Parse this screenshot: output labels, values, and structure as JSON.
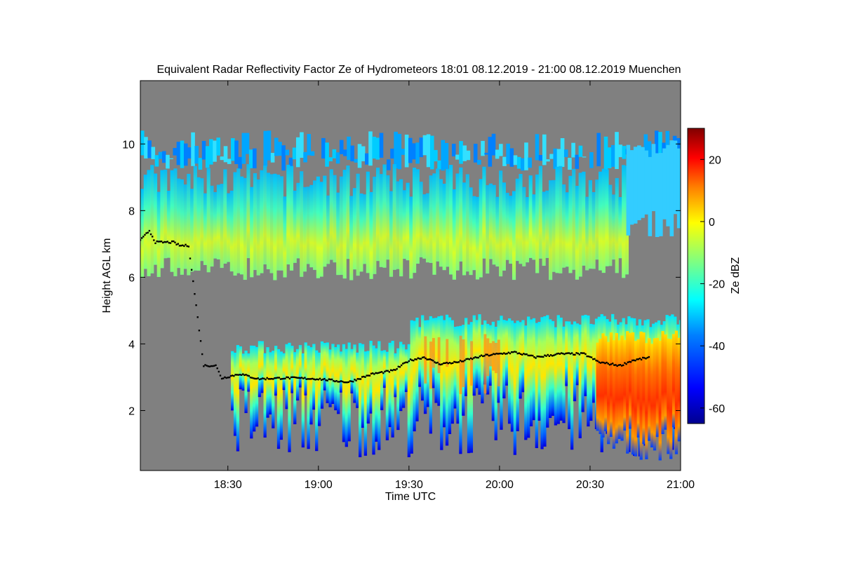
{
  "chart_data": {
    "type": "heatmap",
    "title": "Equivalent Radar Reflectivity Factor Ze of Hydrometeors   18:01 08.12.2019 - 21:00 08.12.2019 Muenchen",
    "xlabel": "Time UTC",
    "ylabel": "Height AGL km",
    "colorbar_label": "Ze dBZ",
    "xlim_minutes_utc": [
      1081,
      1260
    ],
    "ylim_km": [
      0.2,
      11.9
    ],
    "x_ticks": [
      {
        "value": 1110,
        "label": "18:30"
      },
      {
        "value": 1140,
        "label": "19:00"
      },
      {
        "value": 1170,
        "label": "19:30"
      },
      {
        "value": 1200,
        "label": "20:00"
      },
      {
        "value": 1230,
        "label": "20:30"
      },
      {
        "value": 1260,
        "label": "21:00"
      }
    ],
    "y_ticks": [
      {
        "value": 2,
        "label": "2"
      },
      {
        "value": 4,
        "label": "4"
      },
      {
        "value": 6,
        "label": "6"
      },
      {
        "value": 8,
        "label": "8"
      },
      {
        "value": 10,
        "label": "10"
      }
    ],
    "colorbar_range_dbz": [
      -65,
      30
    ],
    "colorbar_ticks": [
      {
        "value": 20,
        "label": "20"
      },
      {
        "value": 0,
        "label": "0"
      },
      {
        "value": -20,
        "label": "-20"
      },
      {
        "value": -40,
        "label": "-40"
      },
      {
        "value": -60,
        "label": "-60"
      }
    ],
    "background_color": "#808080",
    "colormap": [
      "#00008f",
      "#0000ff",
      "#0080ff",
      "#00ffff",
      "#80ff80",
      "#ffff00",
      "#ff8000",
      "#ff0000",
      "#800000"
    ],
    "layers": [
      {
        "name": "upper-ice-layer",
        "x_start": 1081,
        "x_end": 1260,
        "top_km": 9.2,
        "base_km": 6.6,
        "ze_dbz": -10
      },
      {
        "name": "cirrus-top-layer",
        "x_start": 1081,
        "x_end": 1260,
        "top_km": 10.4,
        "base_km": 9.2,
        "ze_dbz": -28
      },
      {
        "name": "lower-precip-layer",
        "x_start": 1111,
        "x_end": 1260,
        "top_km": 4.6,
        "base_km": 0.6,
        "ze_dbz": -8
      },
      {
        "name": "intense-core",
        "x_start": 1232,
        "x_end": 1260,
        "top_km": 4.4,
        "base_km": 0.5,
        "ze_dbz": 10
      }
    ],
    "melting_layer_km": [
      [
        1081,
        7.1
      ],
      [
        1084,
        7.4
      ],
      [
        1086,
        7.05
      ],
      [
        1092,
        7.05
      ],
      [
        1094,
        6.95
      ],
      [
        1097,
        6.95
      ],
      [
        1102,
        3.35
      ],
      [
        1106,
        3.35
      ],
      [
        1108,
        2.97
      ],
      [
        1114,
        3.1
      ],
      [
        1120,
        2.95
      ],
      [
        1130,
        2.98
      ],
      [
        1140,
        2.95
      ],
      [
        1150,
        2.85
      ],
      [
        1158,
        3.1
      ],
      [
        1165,
        3.2
      ],
      [
        1170,
        3.5
      ],
      [
        1175,
        3.6
      ],
      [
        1180,
        3.4
      ],
      [
        1186,
        3.45
      ],
      [
        1195,
        3.65
      ],
      [
        1205,
        3.75
      ],
      [
        1212,
        3.6
      ],
      [
        1220,
        3.7
      ],
      [
        1228,
        3.7
      ],
      [
        1233,
        3.45
      ],
      [
        1240,
        3.35
      ],
      [
        1244,
        3.5
      ],
      [
        1250,
        3.6
      ]
    ]
  }
}
